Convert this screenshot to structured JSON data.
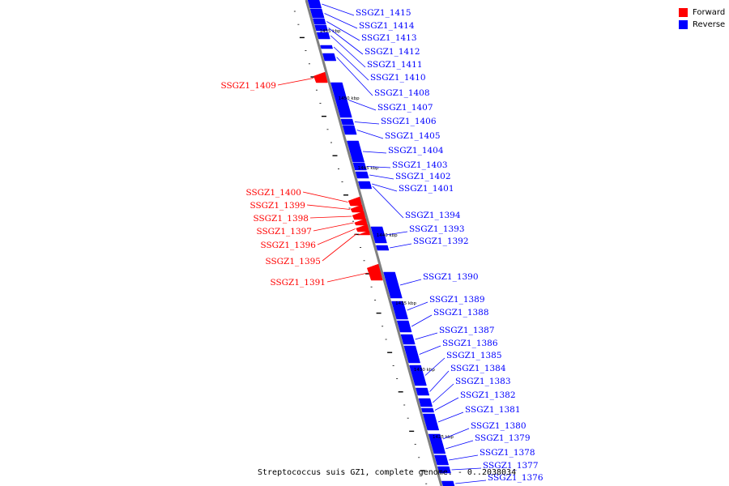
{
  "colors": {
    "forward": "#ff0000",
    "reverse": "#0000ff",
    "backbone": "#808080",
    "tick": "#000000"
  },
  "legend": {
    "forward_label": "Forward",
    "reverse_label": "Reverse"
  },
  "caption": "Streptococcus suis GZ1, complete genome. - 0..2038034",
  "scale_labels": [
    "1455 kbp",
    "1450 kbp",
    "1445 kbp",
    "1440 kbp",
    "1435 kbp",
    "1430 kbp",
    "1425 kbp"
  ],
  "reverse_genes": [
    "SSGZ1_1415",
    "SSGZ1_1414",
    "SSGZ1_1413",
    "SSGZ1_1412",
    "SSGZ1_1411",
    "SSGZ1_1410",
    "SSGZ1_1408",
    "SSGZ1_1407",
    "SSGZ1_1406",
    "SSGZ1_1405",
    "SSGZ1_1404",
    "SSGZ1_1403",
    "SSGZ1_1402",
    "SSGZ1_1401",
    "SSGZ1_1394",
    "SSGZ1_1393",
    "SSGZ1_1392",
    "SSGZ1_1390",
    "SSGZ1_1389",
    "SSGZ1_1388",
    "SSGZ1_1387",
    "SSGZ1_1386",
    "SSGZ1_1385",
    "SSGZ1_1384",
    "SSGZ1_1383",
    "SSGZ1_1382",
    "SSGZ1_1381",
    "SSGZ1_1380",
    "SSGZ1_1379",
    "SSGZ1_1378",
    "SSGZ1_1377",
    "SSGZ1_1376"
  ],
  "forward_genes": [
    "SSGZ1_1409",
    "SSGZ1_1400",
    "SSGZ1_1399",
    "SSGZ1_1398",
    "SSGZ1_1397",
    "SSGZ1_1396",
    "SSGZ1_1395",
    "SSGZ1_1391"
  ]
}
